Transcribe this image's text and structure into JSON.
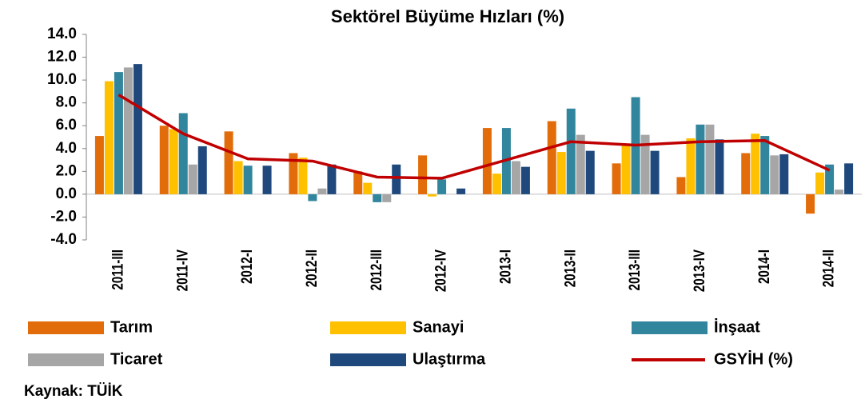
{
  "chart_data": {
    "type": "bar",
    "title": "Sektörel Büyüme Hızları (%)",
    "categories": [
      "2011-III",
      "2011-IV",
      "2012-I",
      "2012-II",
      "2012-III",
      "2012-IV",
      "2013-I",
      "2013-II",
      "2013-III",
      "2013-IV",
      "2014-I",
      "2014-II"
    ],
    "series": [
      {
        "name": "Tarım",
        "color": "#e36c0a",
        "values": [
          5.1,
          6.0,
          5.5,
          3.6,
          2.0,
          3.4,
          5.8,
          6.4,
          2.7,
          1.5,
          3.6,
          -1.7
        ]
      },
      {
        "name": "Sanayi",
        "color": "#ffc000",
        "values": [
          9.9,
          5.7,
          2.9,
          3.2,
          1.0,
          -0.2,
          1.8,
          3.7,
          4.3,
          4.9,
          5.3,
          1.9
        ]
      },
      {
        "name": "İnşaat",
        "color": "#31859c",
        "values": [
          10.7,
          7.1,
          2.5,
          -0.6,
          -0.7,
          1.3,
          5.8,
          7.5,
          8.5,
          6.1,
          5.1,
          2.6
        ]
      },
      {
        "name": "Ticaret",
        "color": "#a6a6a6",
        "values": [
          11.1,
          2.6,
          0.0,
          0.5,
          -0.7,
          0.0,
          2.9,
          5.2,
          5.2,
          6.1,
          3.4,
          0.4
        ]
      },
      {
        "name": "Ulaştırma",
        "color": "#1f497d",
        "values": [
          11.4,
          4.2,
          2.5,
          2.6,
          2.6,
          0.5,
          2.4,
          3.8,
          3.8,
          4.8,
          3.5,
          2.7
        ]
      },
      {
        "name": "GSYİH (%)",
        "color": "#c00000",
        "type": "line",
        "values": [
          8.7,
          5.3,
          3.1,
          2.9,
          1.5,
          1.4,
          3.0,
          4.6,
          4.3,
          4.6,
          4.7,
          2.1
        ]
      }
    ],
    "ylim": [
      -4,
      14
    ],
    "yticks": [
      {
        "value": -4,
        "label": "-4.0"
      },
      {
        "value": -2,
        "label": "-2.0"
      },
      {
        "value": 0,
        "label": "0.0"
      },
      {
        "value": 2,
        "label": "2.0"
      },
      {
        "value": 4,
        "label": "4.0"
      },
      {
        "value": 6,
        "label": "6.0"
      },
      {
        "value": 8,
        "label": "8.0"
      },
      {
        "value": 10,
        "label": "10.0"
      },
      {
        "value": 12,
        "label": "12.0"
      },
      {
        "value": 14,
        "label": "14.0"
      }
    ],
    "legend": "bottom",
    "source": "Kaynak: TÜİK"
  }
}
